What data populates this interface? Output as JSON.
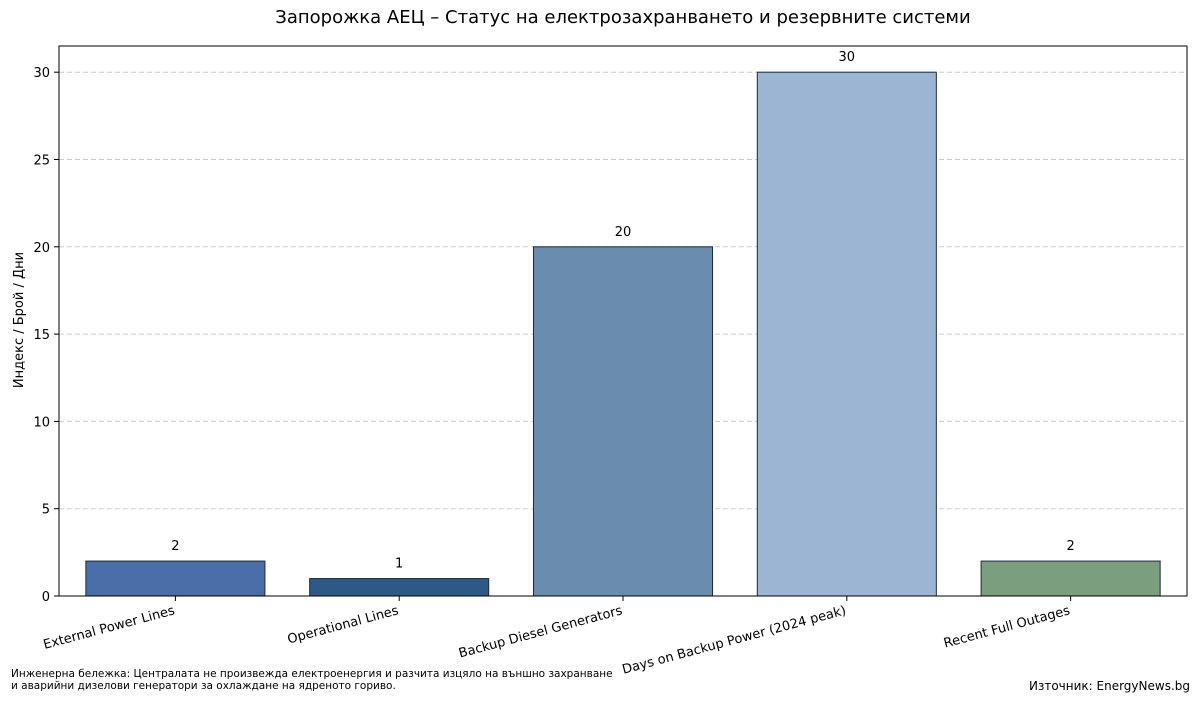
{
  "chart_data": {
    "type": "bar",
    "title": "Запорожка АЕЦ – Статус на електрозахранването и резервните системи",
    "ylabel": "Индекс / Брой / Дни",
    "xlabel": "",
    "categories": [
      "External Power Lines",
      "Operational Lines",
      "Backup Diesel Generators",
      "Days on Backup Power (2024 peak)",
      "Recent Full Outages"
    ],
    "values": [
      2,
      1,
      20,
      30,
      2
    ],
    "value_labels": [
      "2",
      "1",
      "20",
      "30",
      "2"
    ],
    "colors": [
      "#4a6ea8",
      "#2c5985",
      "#6a8caf",
      "#9bb5d3",
      "#7b9e7e"
    ],
    "ylim": [
      0,
      31.5
    ],
    "yticks": [
      0,
      5,
      10,
      15,
      20,
      25,
      30
    ],
    "grid": "y-dashed",
    "legend": "none"
  },
  "footnote": {
    "line1": "Инженерна бележка: Централата не произвежда електроенергия и разчита изцяло на външно захранване",
    "line2": "и аварийни дизелови генератори за охлаждане на ядреното гориво."
  },
  "source": "Източник: EnergyNews.bg"
}
